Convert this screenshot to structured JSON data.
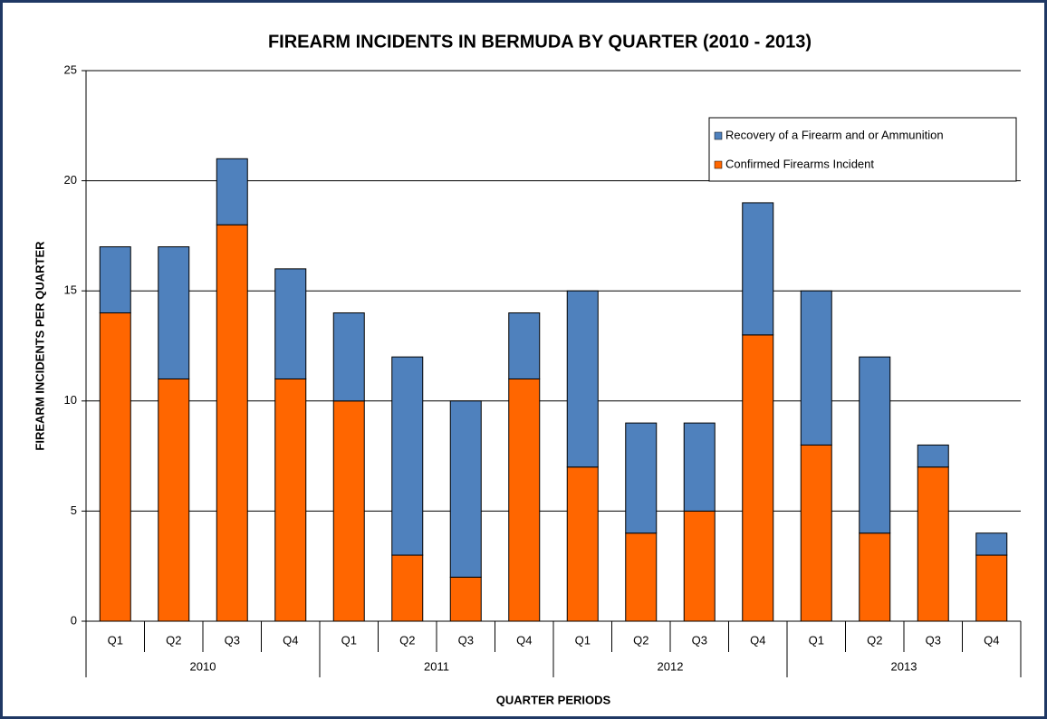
{
  "chart_data": {
    "type": "stacked_bar",
    "title": "FIREARM INCIDENTS IN BERMUDA BY QUARTER (2010 -  2013)",
    "x_label": "QUARTER  PERIODS",
    "y_label": "FIREARM INCIDENTS  PER QUARTER",
    "categories": [
      "Q1",
      "Q2",
      "Q3",
      "Q4",
      "Q1",
      "Q2",
      "Q3",
      "Q4",
      "Q1",
      "Q2",
      "Q3",
      "Q4",
      "Q1",
      "Q2",
      "Q3",
      "Q4"
    ],
    "groups": [
      "2010",
      "2011",
      "2012",
      "2013"
    ],
    "series": [
      {
        "name": "Confirmed Firearms Incident",
        "color": "#ff6600",
        "values": [
          14,
          11,
          18,
          11,
          10,
          3,
          2,
          11,
          7,
          4,
          5,
          13,
          8,
          4,
          7,
          3
        ]
      },
      {
        "name": "Recovery of a Firearm and or Ammunition",
        "color": "#4f81bd",
        "values": [
          3,
          6,
          3,
          5,
          4,
          9,
          8,
          3,
          8,
          5,
          4,
          6,
          7,
          8,
          1,
          1
        ]
      }
    ],
    "ylim": [
      0,
      25
    ],
    "yticks": [
      0,
      5,
      10,
      15,
      20,
      25
    ],
    "grid": true,
    "legend": "upper right"
  }
}
